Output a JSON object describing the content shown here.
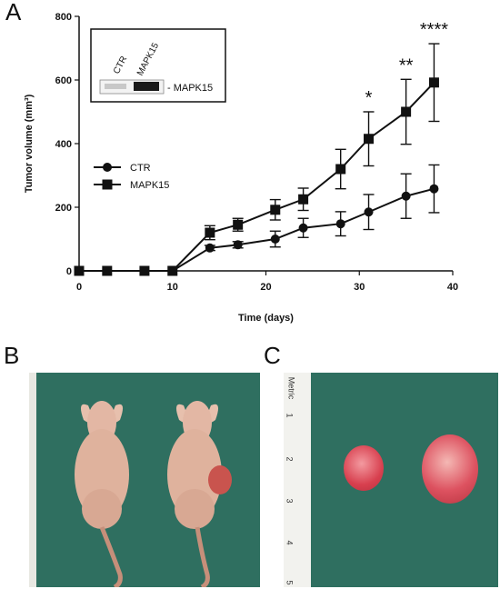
{
  "panels": {
    "a": "A",
    "b": "B",
    "c": "C"
  },
  "chart_data": {
    "type": "line",
    "xlabel": "Time (days)",
    "ylabel": "Tumor volume (mm³)",
    "xlim": [
      0,
      40
    ],
    "ylim": [
      0,
      800
    ],
    "xticks": [
      0,
      10,
      20,
      30,
      40
    ],
    "yticks": [
      0,
      200,
      400,
      600,
      800
    ],
    "grid": false,
    "legend_position": "left",
    "series": [
      {
        "name": "CTR",
        "marker": "circle",
        "x": [
          0,
          3,
          7,
          10,
          14,
          17,
          21,
          24,
          28,
          31,
          35,
          38
        ],
        "y": [
          0,
          0,
          0,
          0,
          72,
          82,
          100,
          135,
          148,
          185,
          235,
          258
        ],
        "err": [
          0,
          0,
          0,
          0,
          8,
          10,
          25,
          30,
          38,
          55,
          70,
          75
        ]
      },
      {
        "name": "MAPK15",
        "marker": "square",
        "x": [
          0,
          3,
          7,
          10,
          14,
          17,
          21,
          24,
          28,
          31,
          35,
          38
        ],
        "y": [
          0,
          0,
          0,
          0,
          120,
          145,
          192,
          225,
          320,
          415,
          500,
          592
        ],
        "err": [
          0,
          0,
          0,
          0,
          22,
          20,
          32,
          35,
          62,
          85,
          102,
          122
        ]
      }
    ],
    "annotations": [
      {
        "x": 31,
        "text": "*"
      },
      {
        "x": 35,
        "text": "**"
      },
      {
        "x": 38,
        "text": "****"
      }
    ],
    "inset": {
      "lanes": [
        "CTR",
        "MAPK15"
      ],
      "band_label": "- MAPK15"
    }
  },
  "photo_c": {
    "ruler_label": "Metric",
    "ruler_numbers": [
      "1",
      "2",
      "3",
      "4",
      "5"
    ]
  },
  "colors": {
    "line": "#111111",
    "photo_bg": "#2f6f60",
    "skin": "#e3b7a4",
    "tumor": "#d83a4a"
  }
}
